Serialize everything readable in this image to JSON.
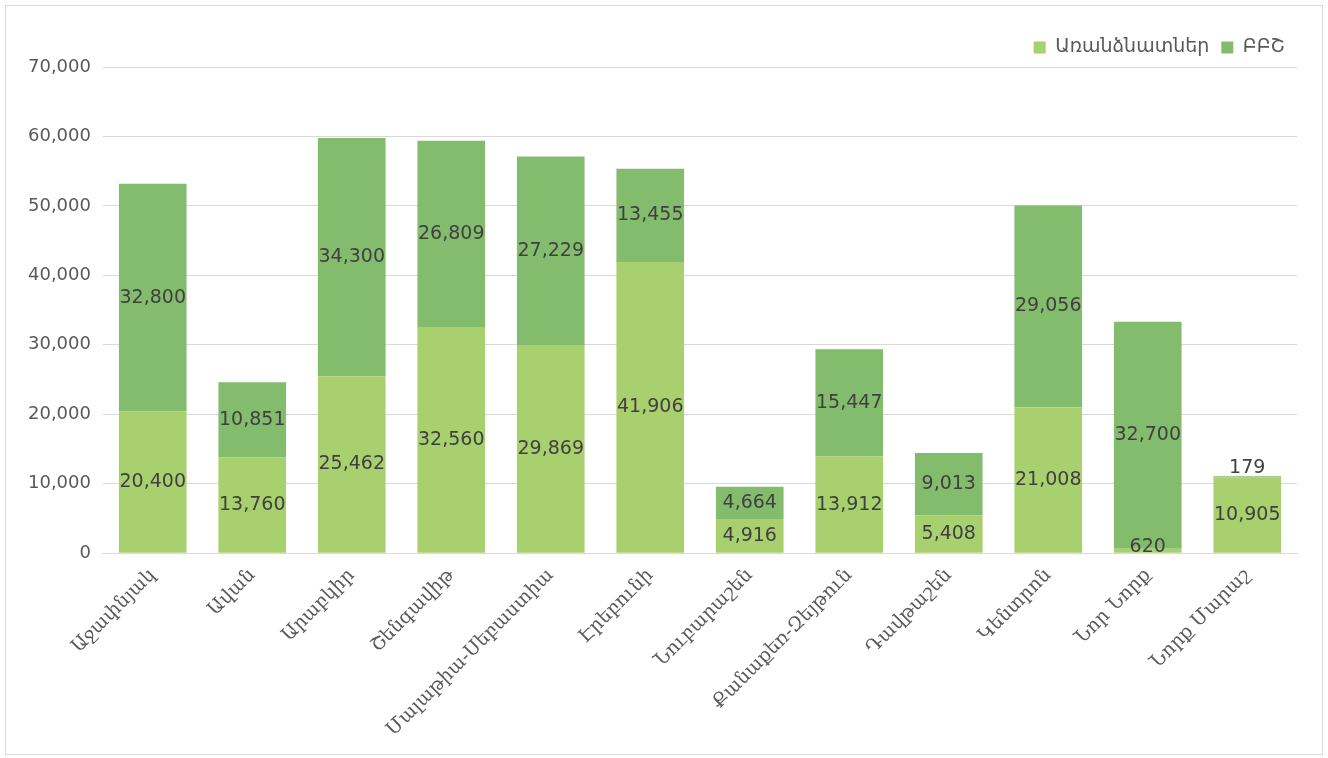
{
  "chart_data": {
    "type": "bar",
    "stacked": true,
    "categories": [
      "Աջափնյակ",
      "Ավան",
      "Արաբկիր",
      "Շենգավիթ",
      "Մալաթիա-Սեբաստիա",
      "Էրեբունի",
      "Նուբարաշեն",
      "Քանաքեռ-Զեյթուն",
      "Դավթաշեն",
      "Կենտրոն",
      "Նոր Նորք",
      "Նորք Մարաշ"
    ],
    "series": [
      {
        "name": "Առանձնատներ",
        "color": "#a9d06e",
        "values": [
          20400,
          13760,
          25462,
          32560,
          29869,
          41906,
          4916,
          13912,
          5408,
          21008,
          620,
          10905
        ],
        "value_labels": [
          "20,400",
          "13,760",
          "25,462",
          "32,560",
          "29,869",
          "41,906",
          "4,916",
          "13,912",
          "5,408",
          "21,008",
          "620",
          "10,905"
        ]
      },
      {
        "name": "ԲԲՇ",
        "color": "#84bc6e",
        "values": [
          32800,
          10851,
          34300,
          26809,
          27229,
          13455,
          4664,
          15447,
          9013,
          29056,
          32700,
          179
        ],
        "value_labels": [
          "32,800",
          "10,851",
          "34,300",
          "26,809",
          "27,229",
          "13,455",
          "4,664",
          "15,447",
          "9,013",
          "29,056",
          "32,700",
          "179"
        ]
      }
    ],
    "ylim": [
      0,
      70000
    ],
    "yticks": [
      {
        "value": 0,
        "label": "0"
      },
      {
        "value": 10000,
        "label": "10,000"
      },
      {
        "value": 20000,
        "label": "20,000"
      },
      {
        "value": 30000,
        "label": "30,000"
      },
      {
        "value": 40000,
        "label": "40,000"
      },
      {
        "value": 50000,
        "label": "50,000"
      },
      {
        "value": 60000,
        "label": "60,000"
      },
      {
        "value": 70000,
        "label": "70,000"
      }
    ],
    "grid": "y",
    "legend": "top right"
  }
}
